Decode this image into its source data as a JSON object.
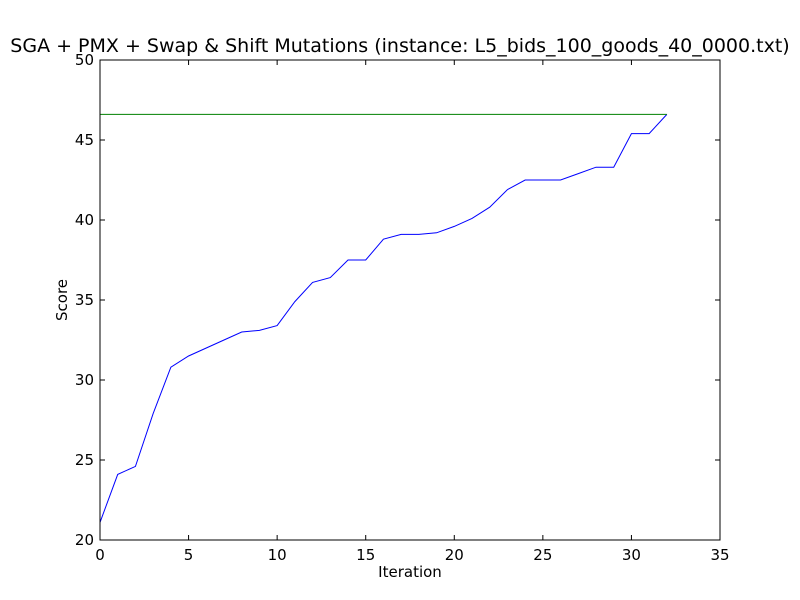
{
  "chart_data": {
    "type": "line",
    "title": "SGA + PMX + Swap & Shift Mutations (instance: L5_bids_100_goods_40_0000.txt)",
    "xlabel": "Iteration",
    "ylabel": "Score",
    "xlim": [
      0,
      35
    ],
    "ylim": [
      20,
      50
    ],
    "xticks": [
      0,
      5,
      10,
      15,
      20,
      25,
      30,
      35
    ],
    "yticks": [
      20,
      25,
      30,
      35,
      40,
      45,
      50
    ],
    "grid": false,
    "series": [
      {
        "color": "#0000ff",
        "x": [
          0,
          1,
          2,
          3,
          4,
          5,
          6,
          7,
          8,
          9,
          10,
          11,
          12,
          13,
          14,
          15,
          16,
          17,
          18,
          19,
          20,
          21,
          22,
          23,
          24,
          25,
          26,
          27,
          28,
          29,
          30,
          31,
          32
        ],
        "y": [
          21.1,
          24.1,
          24.6,
          27.9,
          30.8,
          31.5,
          32.0,
          32.5,
          33.0,
          33.1,
          33.4,
          34.9,
          36.1,
          36.4,
          37.5,
          37.5,
          38.8,
          39.1,
          39.1,
          39.2,
          39.6,
          40.1,
          40.8,
          41.9,
          42.5,
          42.5,
          42.5,
          42.9,
          43.3,
          43.3,
          45.4,
          45.4,
          46.6
        ]
      },
      {
        "color": "#008000",
        "x": [
          0,
          32
        ],
        "y": [
          46.6,
          46.6
        ]
      }
    ]
  }
}
